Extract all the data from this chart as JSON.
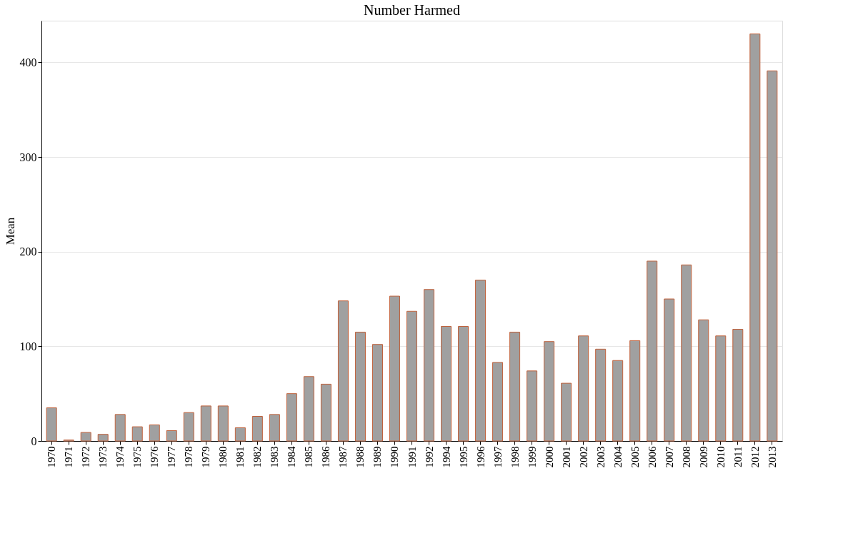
{
  "chart_data": {
    "type": "bar",
    "title": "Number Harmed",
    "ylabel": "Mean",
    "categories": [
      "1970",
      "1971",
      "1972",
      "1973",
      "1974",
      "1975",
      "1976",
      "1977",
      "1978",
      "1979",
      "1980",
      "1981",
      "1982",
      "1983",
      "1984",
      "1985",
      "1986",
      "1987",
      "1988",
      "1989",
      "1990",
      "1991",
      "1992",
      "1994",
      "1995",
      "1996",
      "1997",
      "1998",
      "1999",
      "2000",
      "2001",
      "2002",
      "2003",
      "2004",
      "2005",
      "2006",
      "2007",
      "2008",
      "2009",
      "2010",
      "2011",
      "2012",
      "2013"
    ],
    "values": [
      35,
      1,
      9,
      7,
      28,
      15,
      17,
      11,
      30,
      37,
      37,
      14,
      26,
      28,
      50,
      68,
      60,
      148,
      115,
      102,
      153,
      137,
      160,
      121,
      121,
      170,
      83,
      115,
      74,
      105,
      61,
      111,
      97,
      85,
      106,
      190,
      150,
      186,
      128,
      111,
      118,
      430,
      391
    ],
    "color": "#a0a0a0",
    "ylim": [
      0,
      444
    ],
    "yticks": [
      0,
      100,
      200,
      300,
      400
    ],
    "grid": "y"
  }
}
